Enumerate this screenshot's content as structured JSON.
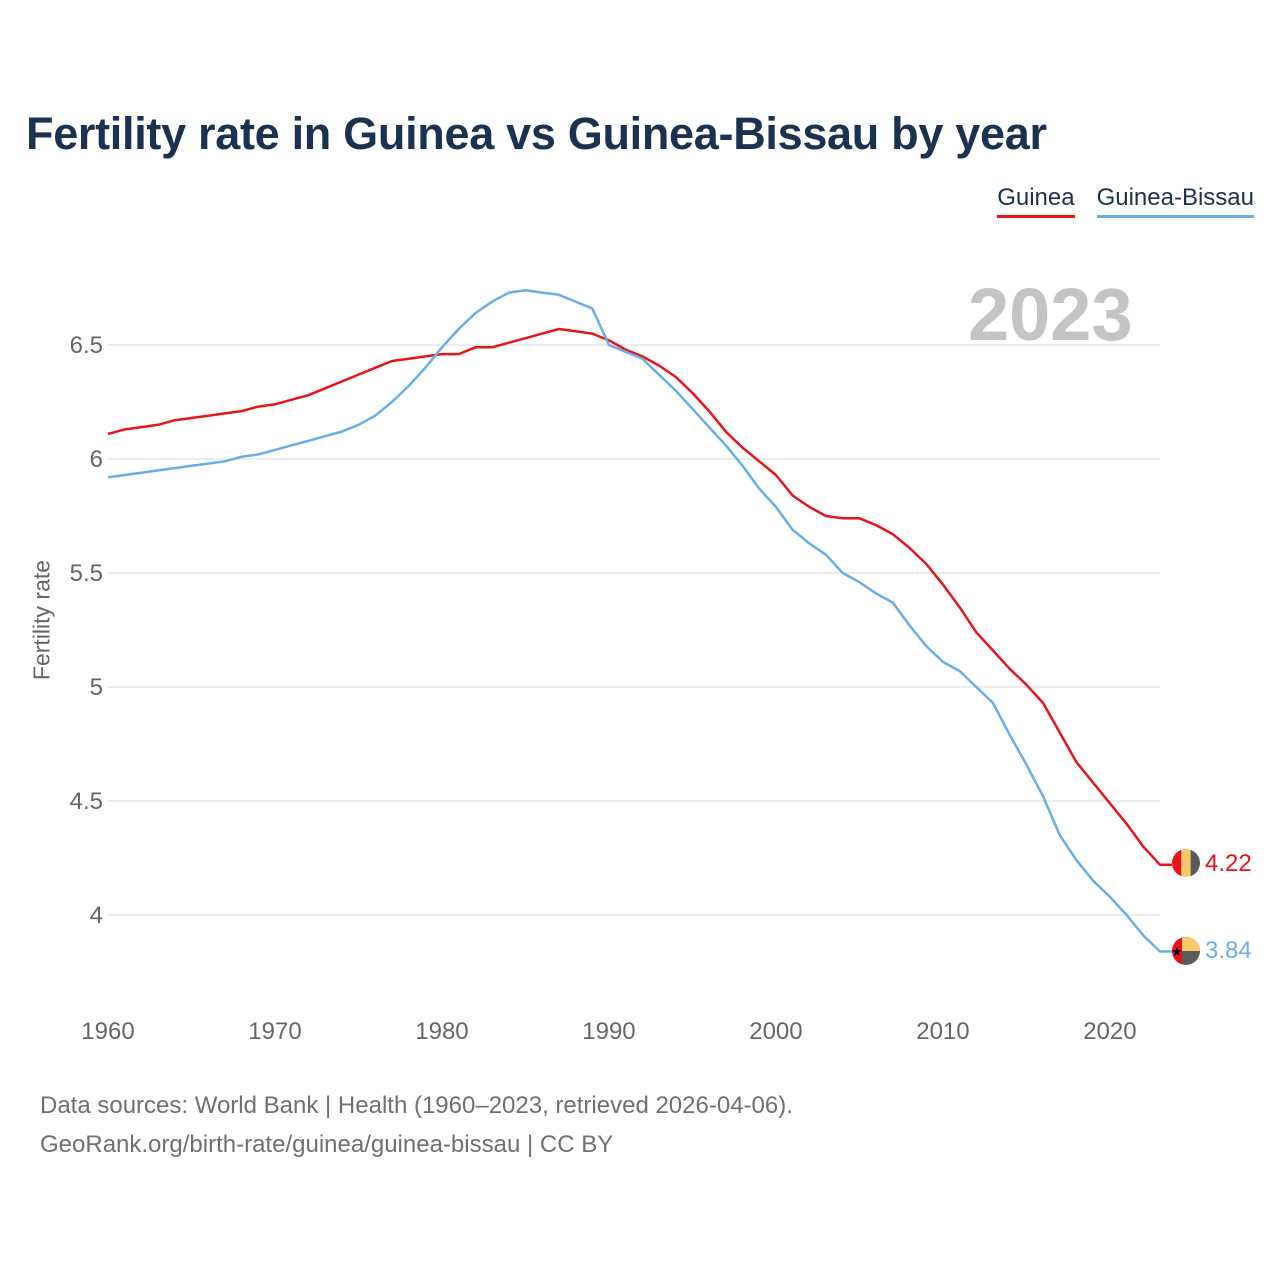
{
  "title": "Fertility rate in Guinea vs Guinea-Bissau by year",
  "legend": {
    "guinea": "Guinea",
    "bissau": "Guinea-Bissau"
  },
  "watermark_year": "2023",
  "footer": {
    "line1": "Data sources: World Bank | Health (1960–2023, retrieved 2026-04-06).",
    "line2": "GeoRank.org/birth-rate/guinea/guinea-bissau | CC BY"
  },
  "chart_data": {
    "type": "line",
    "title": "Fertility rate in Guinea vs Guinea-Bissau by year",
    "xlabel": "",
    "ylabel": "Fertility rate",
    "xlim": [
      1960,
      2023
    ],
    "ylim": [
      3.6,
      6.9
    ],
    "xticks": [
      1960,
      1970,
      1980,
      1990,
      2000,
      2010,
      2020
    ],
    "yticks": [
      4,
      4.5,
      5,
      5.5,
      6,
      6.5
    ],
    "ytick_labels": [
      "4",
      "4.5",
      "5",
      "5.5",
      "6",
      "6.5"
    ],
    "x": [
      1960,
      1961,
      1962,
      1963,
      1964,
      1965,
      1966,
      1967,
      1968,
      1969,
      1970,
      1971,
      1972,
      1973,
      1974,
      1975,
      1976,
      1977,
      1978,
      1979,
      1980,
      1981,
      1982,
      1983,
      1984,
      1985,
      1986,
      1987,
      1988,
      1989,
      1990,
      1991,
      1992,
      1993,
      1994,
      1995,
      1996,
      1997,
      1998,
      1999,
      2000,
      2001,
      2002,
      2003,
      2004,
      2005,
      2006,
      2007,
      2008,
      2009,
      2010,
      2011,
      2012,
      2013,
      2014,
      2015,
      2016,
      2017,
      2018,
      2019,
      2020,
      2021,
      2022,
      2023
    ],
    "series": [
      {
        "name": "Guinea",
        "color": "#e8141c",
        "end_label": "4.22",
        "values": [
          6.11,
          6.13,
          6.14,
          6.15,
          6.17,
          6.18,
          6.19,
          6.2,
          6.21,
          6.23,
          6.24,
          6.26,
          6.28,
          6.31,
          6.34,
          6.37,
          6.4,
          6.43,
          6.44,
          6.45,
          6.46,
          6.46,
          6.49,
          6.49,
          6.51,
          6.53,
          6.55,
          6.57,
          6.56,
          6.55,
          6.52,
          6.48,
          6.45,
          6.41,
          6.36,
          6.29,
          6.21,
          6.12,
          6.05,
          5.99,
          5.93,
          5.84,
          5.79,
          5.75,
          5.74,
          5.74,
          5.71,
          5.67,
          5.61,
          5.54,
          5.45,
          5.35,
          5.24,
          5.16,
          5.08,
          5.01,
          4.93,
          4.8,
          4.67,
          4.58,
          4.49,
          4.4,
          4.3,
          4.22
        ]
      },
      {
        "name": "Guinea-Bissau",
        "color": "#6aaee8",
        "end_label": "3.84",
        "values": [
          5.92,
          5.93,
          5.94,
          5.95,
          5.96,
          5.97,
          5.98,
          5.99,
          6.01,
          6.02,
          6.04,
          6.06,
          6.08,
          6.1,
          6.12,
          6.15,
          6.19,
          6.25,
          6.32,
          6.4,
          6.49,
          6.57,
          6.64,
          6.69,
          6.73,
          6.74,
          6.73,
          6.72,
          6.69,
          6.66,
          6.5,
          6.47,
          6.44,
          6.37,
          6.3,
          6.22,
          6.14,
          6.06,
          5.97,
          5.87,
          5.79,
          5.69,
          5.63,
          5.58,
          5.5,
          5.46,
          5.41,
          5.37,
          5.27,
          5.18,
          5.11,
          5.07,
          5.0,
          4.93,
          4.79,
          4.66,
          4.52,
          4.35,
          4.24,
          4.15,
          4.08,
          4.0,
          3.91,
          3.84
        ]
      }
    ]
  }
}
